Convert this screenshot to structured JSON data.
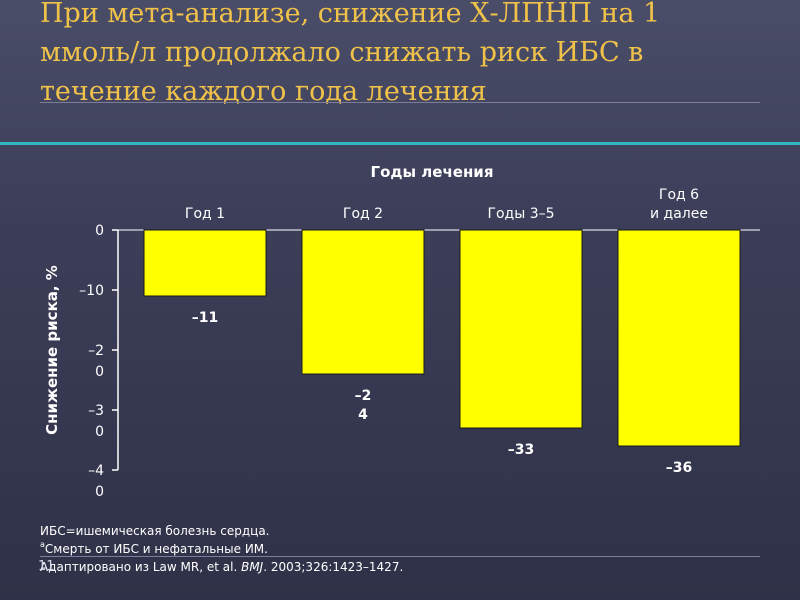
{
  "slide": {
    "title": "При мета-анализе, снижение Х-ЛПНП на 1 ммоль/л продолжало снижать риск ИБС в течение каждого года лечения",
    "page_number": "11"
  },
  "chart_data": {
    "type": "bar",
    "title": "Годы лечения",
    "ylabel": "Снижение риска, %",
    "xlabel": "",
    "ylim": [
      -40,
      0
    ],
    "y_ticks": [
      0,
      -10,
      -20,
      -30,
      -40
    ],
    "y_tick_labels": [
      "0",
      "–10",
      "–2\n0",
      "–3\n0",
      "–4\n0"
    ],
    "categories": [
      "Год 1",
      "Год 2",
      "Годы 3–5",
      "Год 6\nи далее"
    ],
    "values": [
      -11,
      -24,
      -33,
      -36
    ],
    "value_labels": [
      "–11",
      "–2\n4",
      "–33",
      "–36"
    ],
    "bar_color": "#ffff00",
    "grid": false
  },
  "footnotes": {
    "line1": "ИБС=ишемическая болезнь сердца.",
    "line2_sup": "a",
    "line2": "Смерть от ИБС и нефатальные ИМ.",
    "line3_prefix": "Адаптировано из Law MR, et al. ",
    "line3_journal": "BMJ",
    "line3_suffix": ". 2003;326:1423–1427."
  }
}
